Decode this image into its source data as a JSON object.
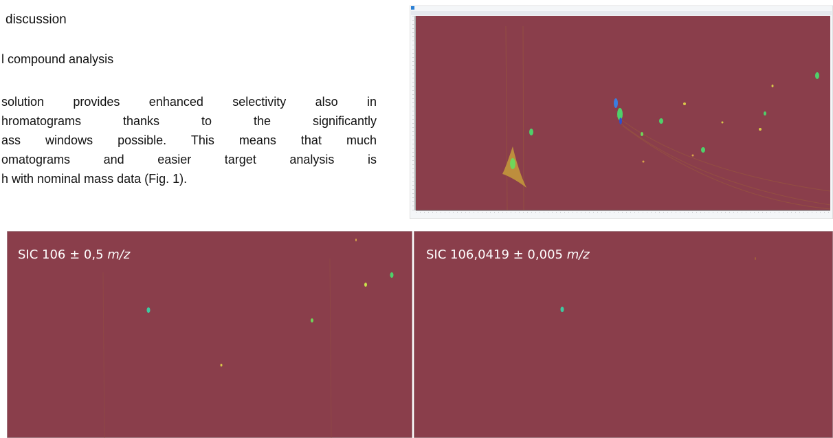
{
  "heading": "discussion",
  "subheading": "l compound analysis",
  "paragraph": [
    "solution provides enhanced selectivity also in",
    "hromatograms thanks to the significantly",
    "ass windows possible. This means that much",
    "omatograms and easier target analysis is",
    "h with nominal mass data (Fig. 1)."
  ],
  "figures": {
    "sic_nominal": {
      "label": "SIC 106 ± 0,5 ",
      "unit": "m/z"
    },
    "sic_accurate": {
      "label": "SIC 106,0419 ± 0,005 ",
      "unit": "m/z"
    }
  }
}
